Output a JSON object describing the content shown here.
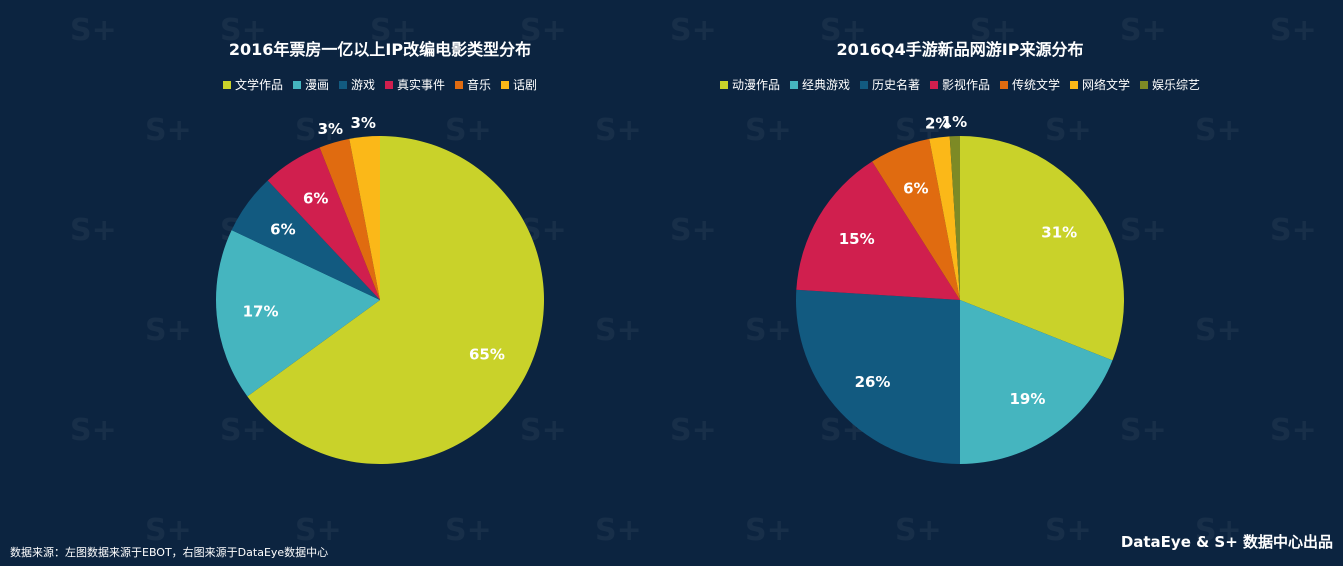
{
  "chart_data": [
    {
      "type": "pie",
      "title": "2016年票房一亿以上IP改编电影类型分布",
      "categories": [
        "文学作品",
        "漫画",
        "游戏",
        "真实事件",
        "音乐",
        "话剧"
      ],
      "values": [
        65,
        17,
        6,
        6,
        3,
        3
      ],
      "value_labels": [
        "65%",
        "17%",
        "6%",
        "6%",
        "3%",
        "3%"
      ],
      "colors": [
        "#c9d22a",
        "#45b5bf",
        "#125a80",
        "#d01f4e",
        "#e06b10",
        "#fbb818"
      ],
      "legend_position": "top-center"
    },
    {
      "type": "pie",
      "title": "2016Q4手游新品网游IP来源分布",
      "categories": [
        "动漫作品",
        "经典游戏",
        "历史名著",
        "影视作品",
        "传统文学",
        "网络文学",
        "娱乐综艺"
      ],
      "values": [
        31,
        19,
        26,
        15,
        6,
        2,
        1
      ],
      "value_labels": [
        "31%",
        "19%",
        "26%",
        "15%",
        "6%",
        "2%",
        "1%"
      ],
      "colors": [
        "#c9d22a",
        "#45b5bf",
        "#125a80",
        "#d01f4e",
        "#e06b10",
        "#fbb818",
        "#7d8a25"
      ],
      "legend_position": "top-center"
    }
  ],
  "footer": {
    "source_note": "数据来源：左图数据来源于EBOT，右图来源于DataEye数据中心",
    "credit": "DataEye & S+ 数据中心出品"
  },
  "watermark_text": "S+"
}
